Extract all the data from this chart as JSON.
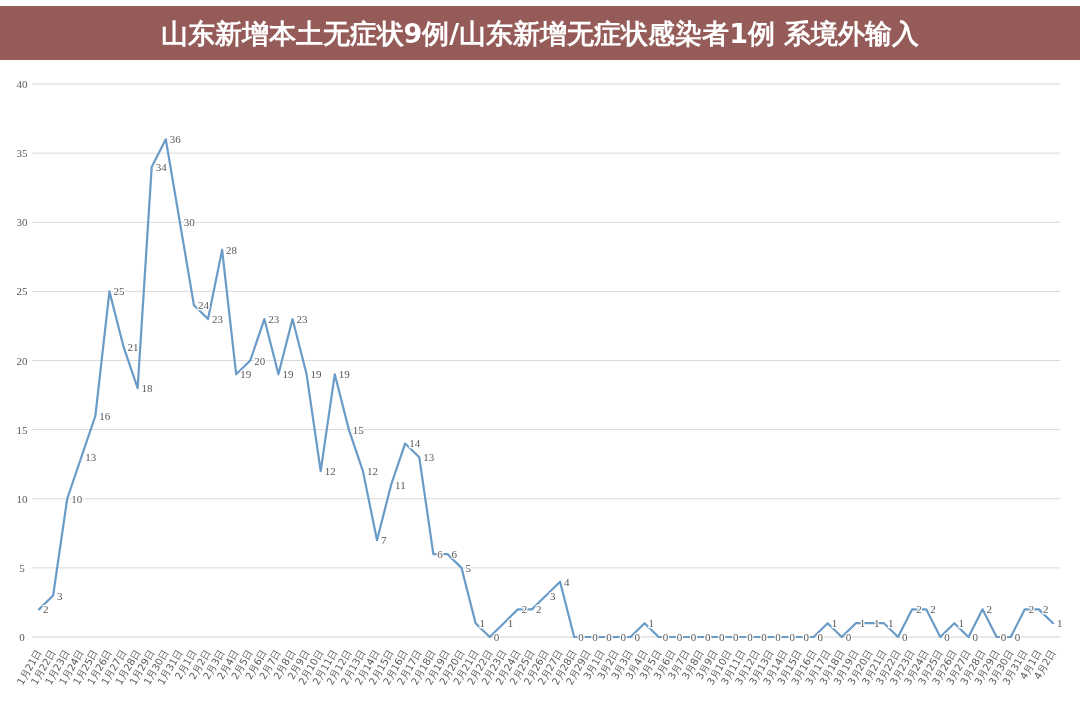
{
  "chart_data": {
    "type": "line",
    "title": "山东新增本土无症状9例/山东新增无症状感染者1例 系境外输入",
    "categories": [
      "1月21日",
      "1月22日",
      "1月23日",
      "1月24日",
      "1月25日",
      "1月26日",
      "1月27日",
      "1月28日",
      "1月29日",
      "1月30日",
      "1月31日",
      "2月1日",
      "2月2日",
      "2月3日",
      "2月4日",
      "2月5日",
      "2月6日",
      "2月7日",
      "2月8日",
      "2月9日",
      "2月10日",
      "2月11日",
      "2月12日",
      "2月13日",
      "2月14日",
      "2月15日",
      "2月16日",
      "2月17日",
      "2月18日",
      "2月19日",
      "2月20日",
      "2月21日",
      "2月22日",
      "2月23日",
      "2月24日",
      "2月25日",
      "2月26日",
      "2月27日",
      "2月28日",
      "2月29日",
      "3月1日",
      "3月2日",
      "3月3日",
      "3月4日",
      "3月5日",
      "3月6日",
      "3月7日",
      "3月8日",
      "3月9日",
      "3月10日",
      "3月11日",
      "3月12日",
      "3月13日",
      "3月14日",
      "3月15日",
      "3月16日",
      "3月17日",
      "3月18日",
      "3月19日",
      "3月20日",
      "3月21日",
      "3月22日",
      "3月23日",
      "3月24日",
      "3月25日",
      "3月26日",
      "3月27日",
      "3月28日",
      "3月29日",
      "3月30日",
      "3月31日",
      "4月1日",
      "4月2日"
    ],
    "series": [
      {
        "color": "#6a9bc6",
        "values": [
          2,
          3,
          10,
          13,
          16,
          25,
          21,
          18,
          34,
          36,
          30,
          24,
          23,
          28,
          19,
          20,
          23,
          19,
          23,
          19,
          12,
          19,
          15,
          12,
          7,
          11,
          14,
          13,
          6,
          6,
          5,
          1,
          0,
          1,
          2,
          2,
          3,
          4,
          0,
          0,
          0,
          0,
          0,
          1,
          0,
          0,
          0,
          0,
          0,
          0,
          0,
          0,
          0,
          0,
          0,
          0,
          1,
          0,
          1,
          1,
          1,
          0,
          2,
          2,
          0,
          1,
          0,
          2,
          0,
          0,
          2,
          2,
          1
        ]
      }
    ],
    "ylim": [
      0,
      40
    ],
    "yticks": [
      0,
      5,
      10,
      15,
      20,
      25,
      30,
      35,
      40
    ],
    "grid": "y",
    "data_labels": true
  }
}
